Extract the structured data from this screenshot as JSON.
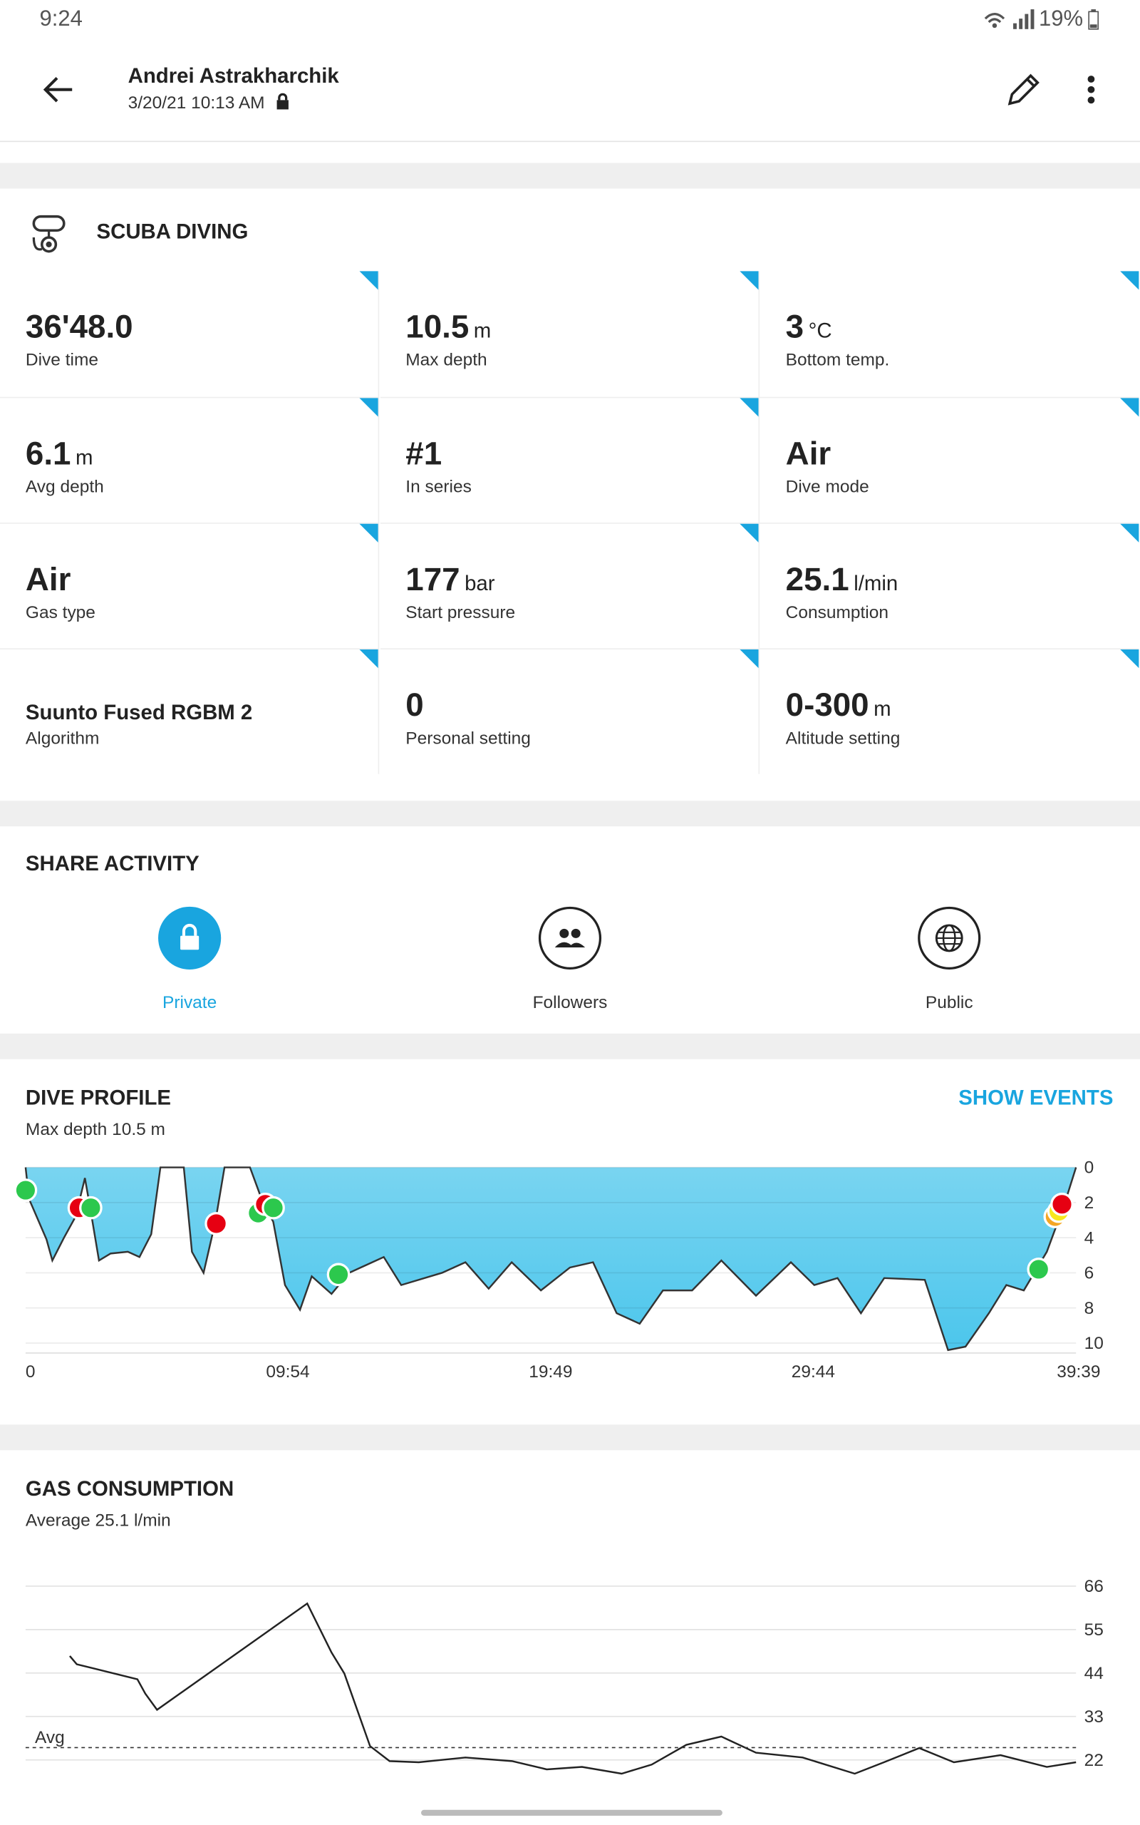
{
  "status_bar": {
    "time": "9:24",
    "battery": "19%"
  },
  "header": {
    "name": "Andrei Astrakharchik",
    "datetime": "3/20/21 10:13 AM"
  },
  "activity": {
    "title": "SCUBA DIVING",
    "stats": [
      {
        "value": "36'48.0",
        "label": "Dive time"
      },
      {
        "value": "10.5",
        "unit": "m",
        "label": "Max depth"
      },
      {
        "value": "3",
        "unit": "°C",
        "label": "Bottom temp."
      },
      {
        "value": "6.1",
        "unit": "m",
        "label": "Avg depth"
      },
      {
        "value": "#1",
        "label": "In series"
      },
      {
        "value": "Air",
        "label": "Dive mode"
      },
      {
        "value": "Air",
        "label": "Gas type"
      },
      {
        "value": "177",
        "unit": "bar",
        "label": "Start pressure"
      },
      {
        "value": "25.1",
        "unit": "l/min",
        "label": "Consumption"
      },
      {
        "value": "Suunto Fused RGBM 2",
        "label": "Algorithm"
      },
      {
        "value": "0",
        "label": "Personal setting"
      },
      {
        "value": "0-300",
        "unit": "m",
        "label": "Altitude setting"
      }
    ]
  },
  "share": {
    "title": "SHARE ACTIVITY",
    "options": [
      "Private",
      "Followers",
      "Public"
    ]
  },
  "dive_profile": {
    "action": "SHOW EVENTS"
  },
  "chart_data": [
    {
      "type": "area",
      "title": "DIVE PROFILE",
      "subtitle": "Max depth 10.5 m",
      "x": [
        0,
        0.13,
        0.79,
        1.01,
        1.45,
        1.89,
        2.24,
        2.46,
        2.77,
        3.21,
        3.86,
        4.3,
        4.74,
        5.09,
        5.97,
        6.28,
        6.72,
        7.16,
        7.51,
        8.47,
        8.91,
        9.35,
        9.79,
        10.36,
        10.8,
        11.55,
        12.21,
        13.52,
        14.18,
        15.72,
        16.6,
        17.48,
        18.35,
        19.45,
        20.55,
        21.42,
        22.31,
        23.18,
        24.06,
        25.16,
        26.26,
        27.57,
        28.89,
        29.77,
        30.65,
        31.53,
        32.41,
        33.94,
        34.82,
        35.48,
        36.36,
        37.02,
        37.68,
        38.55,
        39.21,
        39.65
      ],
      "values": [
        0,
        1.8,
        4.1,
        5.3,
        4.0,
        2.8,
        0.6,
        2.5,
        5.3,
        4.9,
        4.8,
        5.1,
        3.8,
        0,
        0,
        4.8,
        6.0,
        3.1,
        0,
        0,
        1.8,
        3.1,
        6.7,
        8.1,
        6.2,
        7.2,
        6.0,
        5.1,
        6.7,
        6.0,
        5.4,
        6.9,
        5.4,
        7.0,
        5.7,
        5.4,
        8.3,
        8.9,
        7.0,
        7.0,
        5.3,
        7.3,
        5.4,
        6.7,
        6.3,
        8.3,
        6.3,
        6.4,
        10.4,
        10.2,
        8.3,
        6.7,
        7.0,
        4.8,
        2.1,
        0
      ],
      "color": "#4cc6ec",
      "line_color": "#333333",
      "xlim": [
        0,
        39.65
      ],
      "xticks": [
        {
          "value": 0,
          "label": "0"
        },
        {
          "value": 9.9,
          "label": "09:54"
        },
        {
          "value": 19.82,
          "label": "19:49"
        },
        {
          "value": 29.73,
          "label": "29:44"
        },
        {
          "value": 39.65,
          "label": "39:39"
        }
      ],
      "ylim": [
        0,
        10.5
      ],
      "yticks": [
        0,
        2,
        4,
        6,
        8,
        10
      ],
      "invert_y": true,
      "grid": true,
      "events": [
        {
          "x": 0,
          "y": 1.3,
          "color": "#2cc84d"
        },
        {
          "x": 2.02,
          "y": 2.3,
          "color": "#e60012"
        },
        {
          "x": 2.46,
          "y": 2.3,
          "color": "#2cc84d"
        },
        {
          "x": 7.2,
          "y": 3.2,
          "color": "#e60012"
        },
        {
          "x": 8.78,
          "y": 2.6,
          "color": "#2cc84d"
        },
        {
          "x": 9.05,
          "y": 2.1,
          "color": "#e60012"
        },
        {
          "x": 9.35,
          "y": 2.3,
          "color": "#2cc84d"
        },
        {
          "x": 11.81,
          "y": 6.1,
          "color": "#2cc84d"
        },
        {
          "x": 38.24,
          "y": 5.8,
          "color": "#2cc84d"
        },
        {
          "x": 38.86,
          "y": 2.8,
          "color": "#f5a623"
        },
        {
          "x": 39.0,
          "y": 2.5,
          "color": "#f8e71c"
        },
        {
          "x": 39.12,
          "y": 2.1,
          "color": "#e60012"
        }
      ]
    },
    {
      "type": "line",
      "title": "GAS CONSUMPTION",
      "subtitle": "Average 25.1 l/min",
      "x": [
        1.67,
        1.93,
        4.22,
        4.52,
        4.96,
        10.63,
        11.55,
        12.03,
        13.0,
        13.74,
        14.84,
        16.6,
        18.36,
        19.67,
        21.0,
        22.5,
        23.63,
        24.94,
        26.26,
        27.57,
        29.33,
        31.3,
        32.4,
        33.73,
        35.04,
        36.8,
        38.55,
        39.65
      ],
      "values": [
        48.3,
        46.2,
        42.4,
        38.8,
        34.7,
        61.6,
        49.2,
        43.9,
        25.5,
        21.7,
        21.4,
        22.6,
        21.7,
        19.6,
        20.2,
        18.5,
        20.8,
        25.8,
        27.9,
        23.8,
        22.6,
        18.5,
        21.4,
        25.0,
        21.4,
        23.2,
        20.2,
        21.4
      ],
      "color": "#222222",
      "xlim": [
        0,
        39.65
      ],
      "ylim": [
        17,
        68
      ],
      "yticks": [
        22,
        33,
        44,
        55,
        66
      ],
      "grid": true,
      "reference_line": {
        "value": 25.1,
        "label": "Avg"
      }
    }
  ]
}
